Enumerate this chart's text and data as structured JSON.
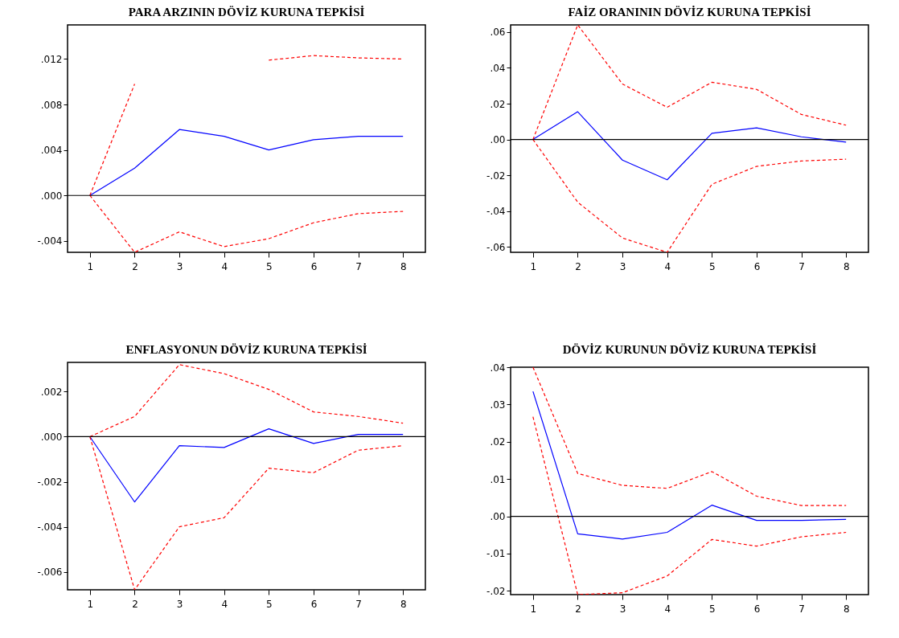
{
  "chart_data": [
    {
      "type": "line",
      "title": "PARA ARZININ DÖVİZ KURUNA TEPKİSİ",
      "categories": [
        "1",
        "2",
        "3",
        "4",
        "5",
        "6",
        "7",
        "8"
      ],
      "ylim": [
        -0.005,
        0.015
      ],
      "yticks": [
        {
          "value": -0.004,
          "label": "-.004"
        },
        {
          "value": 0,
          "label": ".000"
        },
        {
          "value": 0.004,
          "label": ".004"
        },
        {
          "value": 0.008,
          "label": ".008"
        },
        {
          "value": 0.012,
          "label": ".012"
        }
      ],
      "series": [
        {
          "color": "#0000ff",
          "line_style": "solid",
          "values": [
            0,
            0.0024,
            0.0058,
            0.0052,
            0.004,
            0.0049,
            0.0052,
            0.0052
          ]
        },
        {
          "color": "#ff0000",
          "line_style": "dashed",
          "values": [
            0,
            0.0098,
            null,
            null,
            0.0119,
            0.0123,
            0.0121,
            0.012
          ]
        },
        {
          "color": "#ff0000",
          "line_style": "dashed",
          "values": [
            0,
            -0.005,
            -0.0032,
            -0.0045,
            -0.0038,
            -0.0024,
            -0.0016,
            -0.0014
          ]
        }
      ],
      "ref_lines": [
        {
          "axis": "y",
          "value": 0,
          "color": "#000000"
        }
      ]
    },
    {
      "type": "line",
      "title": "FAİZ ORANININ DÖVİZ KURUNA TEPKİSİ",
      "categories": [
        "1",
        "2",
        "3",
        "4",
        "5",
        "6",
        "7",
        "8"
      ],
      "ylim": [
        -0.063,
        0.064
      ],
      "yticks": [
        {
          "value": -0.06,
          "label": "-.06"
        },
        {
          "value": -0.04,
          "label": "-.04"
        },
        {
          "value": -0.02,
          "label": "-.02"
        },
        {
          "value": 0,
          "label": ".00"
        },
        {
          "value": 0.02,
          "label": ".02"
        },
        {
          "value": 0.04,
          "label": ".04"
        },
        {
          "value": 0.06,
          "label": ".06"
        }
      ],
      "series": [
        {
          "color": "#0000ff",
          "line_style": "solid",
          "values": [
            0,
            0.0155,
            -0.0115,
            -0.0225,
            0.0035,
            0.0065,
            0.0015,
            -0.0015
          ]
        },
        {
          "color": "#ff0000",
          "line_style": "dashed",
          "values": [
            0,
            0.064,
            0.031,
            0.018,
            0.032,
            0.028,
            0.014,
            0.008
          ]
        },
        {
          "color": "#ff0000",
          "line_style": "dashed",
          "values": [
            0,
            -0.035,
            -0.055,
            -0.063,
            -0.025,
            -0.015,
            -0.012,
            -0.011
          ]
        }
      ],
      "ref_lines": [
        {
          "axis": "y",
          "value": 0,
          "color": "#000000"
        }
      ]
    },
    {
      "type": "line",
      "title": "ENFLASYONUN DÖVİZ KURUNA TEPKİSİ",
      "categories": [
        "1",
        "2",
        "3",
        "4",
        "5",
        "6",
        "7",
        "8"
      ],
      "ylim": [
        -0.0068,
        0.0033
      ],
      "yticks": [
        {
          "value": -0.006,
          "label": "-.006"
        },
        {
          "value": -0.004,
          "label": "-.004"
        },
        {
          "value": -0.002,
          "label": "-.002"
        },
        {
          "value": 0,
          "label": ".000"
        },
        {
          "value": 0.002,
          "label": ".002"
        }
      ],
      "series": [
        {
          "color": "#0000ff",
          "line_style": "solid",
          "values": [
            0,
            -0.0029,
            -0.0004,
            -0.00048,
            0.00035,
            -0.0003,
            0.0001,
            0.0001
          ]
        },
        {
          "color": "#ff0000",
          "line_style": "dashed",
          "values": [
            0,
            0.0009,
            0.0032,
            0.0028,
            0.0021,
            0.0011,
            0.0009,
            0.0006
          ]
        },
        {
          "color": "#ff0000",
          "line_style": "dashed",
          "values": [
            0,
            -0.0068,
            -0.004,
            -0.0036,
            -0.0014,
            -0.0016,
            -0.0006,
            -0.0004
          ]
        }
      ],
      "ref_lines": [
        {
          "axis": "y",
          "value": 0,
          "color": "#000000"
        }
      ]
    },
    {
      "type": "line",
      "title": "DÖVİZ KURUNUN DÖVİZ KURUNA TEPKİSİ",
      "categories": [
        "1",
        "2",
        "3",
        "4",
        "5",
        "6",
        "7",
        "8"
      ],
      "ylim": [
        -0.021,
        0.04
      ],
      "yticks": [
        {
          "value": -0.02,
          "label": "-.02"
        },
        {
          "value": -0.01,
          "label": "-.01"
        },
        {
          "value": 0,
          "label": ".00"
        },
        {
          "value": 0.01,
          "label": ".01"
        },
        {
          "value": 0.02,
          "label": ".02"
        },
        {
          "value": 0.03,
          "label": ".03"
        },
        {
          "value": 0.04,
          "label": ".04"
        }
      ],
      "series": [
        {
          "color": "#0000ff",
          "line_style": "solid",
          "values": [
            0.0335,
            -0.0047,
            -0.0061,
            -0.0043,
            0.003,
            -0.0011,
            -0.0011,
            -0.0008
          ]
        },
        {
          "color": "#ff0000",
          "line_style": "dashed",
          "values": [
            0.04,
            0.0115,
            0.0083,
            0.0075,
            0.012,
            0.0054,
            0.0029,
            0.0029
          ]
        },
        {
          "color": "#ff0000",
          "line_style": "dashed",
          "values": [
            0.0267,
            -0.021,
            -0.0205,
            -0.016,
            -0.0062,
            -0.008,
            -0.0055,
            -0.0043
          ]
        }
      ],
      "ref_lines": [
        {
          "axis": "y",
          "value": 0,
          "color": "#000000"
        }
      ]
    }
  ]
}
